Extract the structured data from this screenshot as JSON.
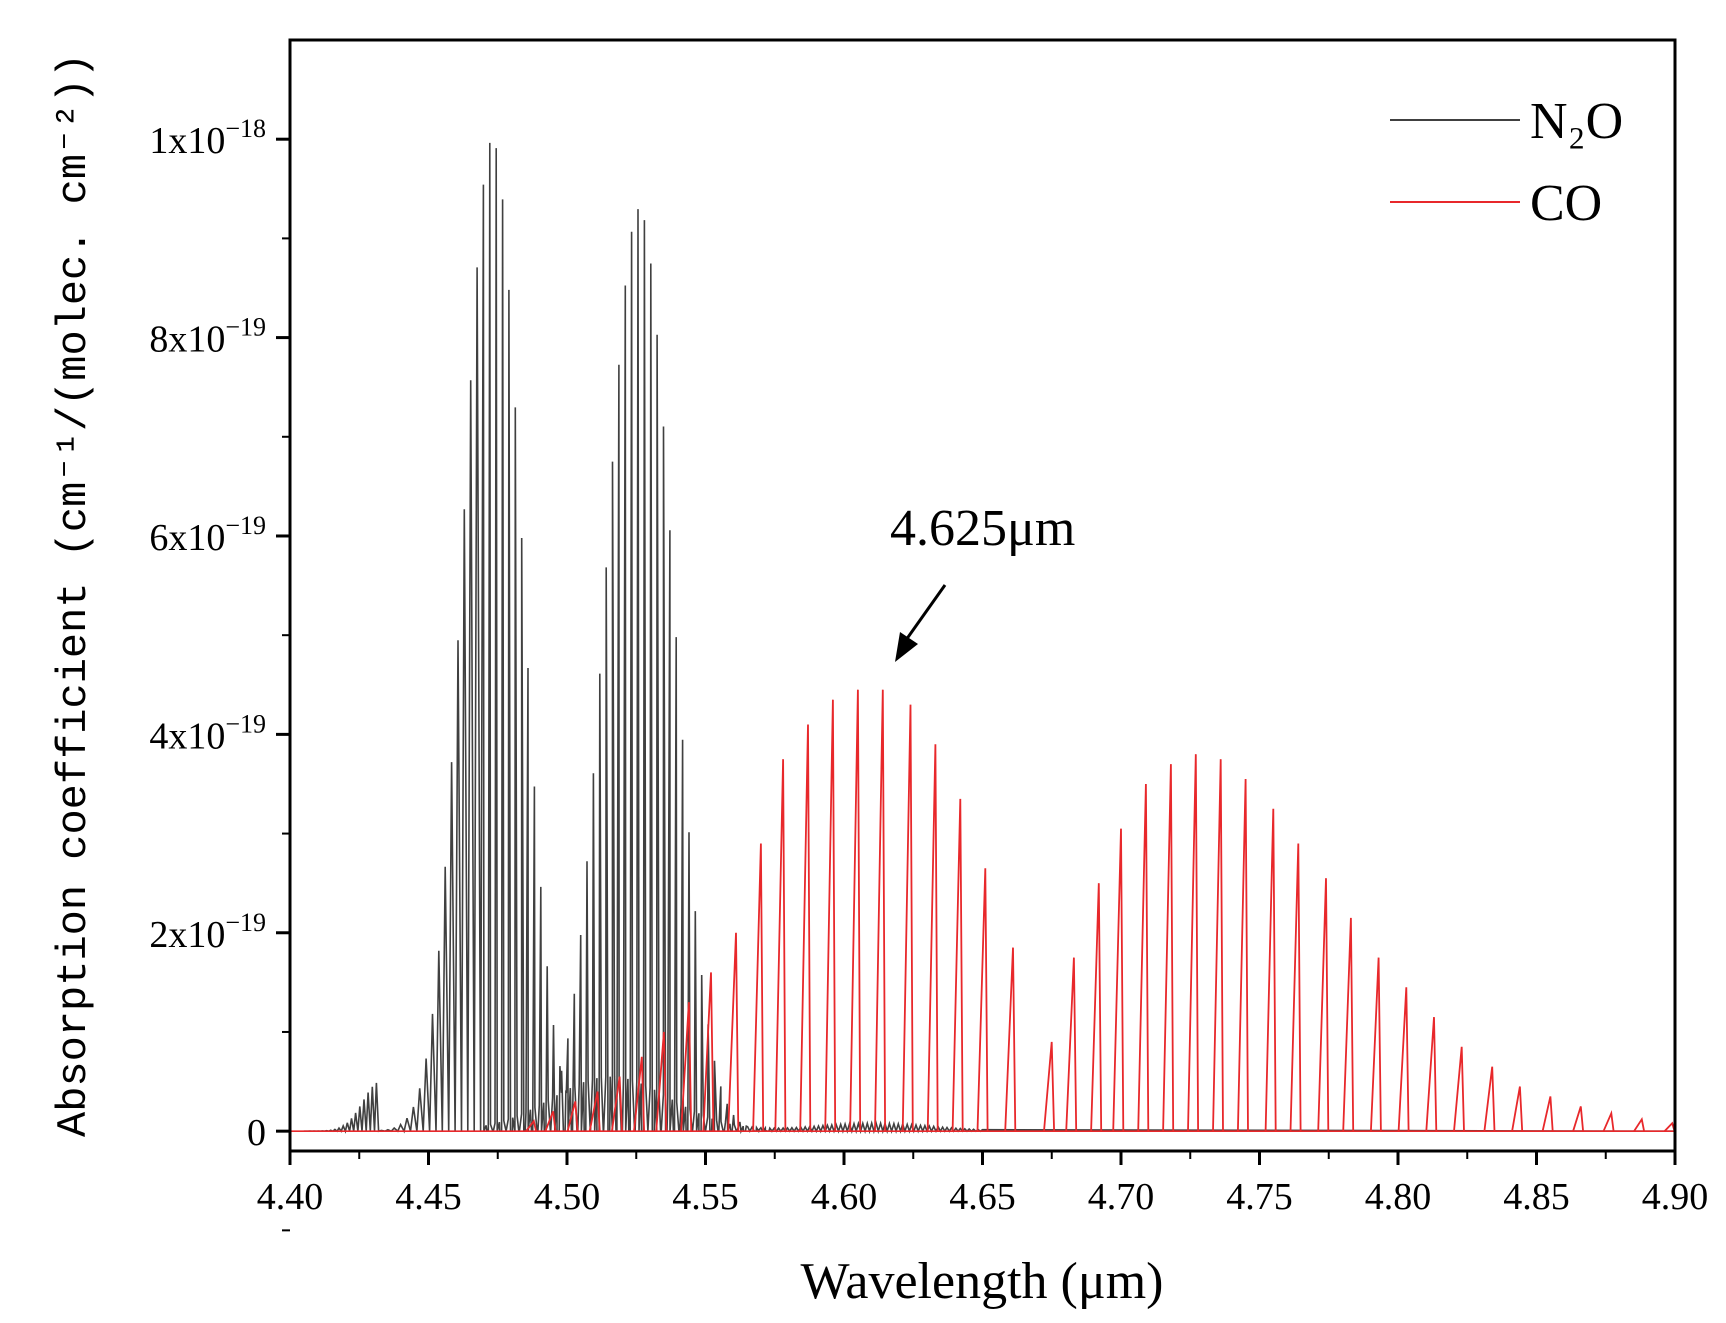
{
  "chart_data": {
    "type": "line",
    "title": "",
    "xlabel": "Wavelength (μm)",
    "ylabel": "Absorption coefficient (cm⁻¹/(molec. cm⁻²))",
    "xlim": [
      4.4,
      4.9
    ],
    "ylim": [
      -2e-20,
      1.1e-18
    ],
    "x_ticks": [
      4.4,
      4.45,
      4.5,
      4.55,
      4.6,
      4.65,
      4.7,
      4.75,
      4.8,
      4.85,
      4.9
    ],
    "x_tick_labels": [
      "4.40",
      "4.45",
      "4.50",
      "4.55",
      "4.60",
      "4.65",
      "4.70",
      "4.75",
      "4.80",
      "4.85",
      "4.90"
    ],
    "y_ticks": [
      0,
      2e-19,
      4e-19,
      6e-19,
      8e-19,
      1e-18
    ],
    "y_tick_labels": [
      {
        "base": "0",
        "exp": ""
      },
      {
        "base": "2x10",
        "exp": "−19"
      },
      {
        "base": "4x10",
        "exp": "−19"
      },
      {
        "base": "6x10",
        "exp": "−19"
      },
      {
        "base": "8x10",
        "exp": "−19"
      },
      {
        "base": "1x10",
        "exp": "−18"
      }
    ],
    "legend": {
      "position": "top-right",
      "entries": [
        {
          "name": "N₂O",
          "color": "#404040"
        },
        {
          "name": "CO",
          "color": "#e8282b"
        }
      ]
    },
    "annotations": [
      {
        "text": "4.625μm",
        "x": 4.617,
        "y": 4.3e-19
      }
    ],
    "series": [
      {
        "name": "N₂O",
        "color": "#404040",
        "description": "Dense rotational line comb, two lobes",
        "lobes": [
          {
            "center": 4.472,
            "peak": 1e-18,
            "start": 4.432,
            "end": 4.5
          },
          {
            "center": 4.525,
            "peak": 9.3e-19,
            "start": 4.497,
            "end": 4.575
          }
        ],
        "line_spacing": 0.0023,
        "weak_band": {
          "center": 4.515,
          "peak": 5.5e-20,
          "start": 4.47,
          "end": 4.6
        }
      },
      {
        "name": "CO",
        "color": "#e8282b",
        "description": "Discrete rotational lines, P and R branches",
        "x": [
          4.488,
          4.495,
          4.503,
          4.511,
          4.519,
          4.527,
          4.535,
          4.544,
          4.552,
          4.561,
          4.57,
          4.578,
          4.587,
          4.596,
          4.605,
          4.614,
          4.624,
          4.633,
          4.642,
          4.651,
          4.661,
          4.675,
          4.683,
          4.692,
          4.7,
          4.709,
          4.718,
          4.727,
          4.736,
          4.745,
          4.755,
          4.764,
          4.774,
          4.783,
          4.793,
          4.803,
          4.813,
          4.823,
          4.834,
          4.844,
          4.855,
          4.866,
          4.877,
          4.888,
          4.899
        ],
        "values": [
          1e-20,
          2e-20,
          3e-20,
          4e-20,
          5.5e-20,
          7.5e-20,
          1e-19,
          1.3e-19,
          1.6e-19,
          2e-19,
          2.9e-19,
          3.75e-19,
          4.1e-19,
          4.35e-19,
          4.45e-19,
          4.45e-19,
          4.3e-19,
          3.9e-19,
          3.35e-19,
          2.65e-19,
          1.85e-19,
          9e-20,
          1.75e-19,
          2.5e-19,
          3.05e-19,
          3.5e-19,
          3.7e-19,
          3.8e-19,
          3.75e-19,
          3.55e-19,
          3.25e-19,
          2.9e-19,
          2.55e-19,
          2.15e-19,
          1.75e-19,
          1.45e-19,
          1.15e-19,
          8.5e-20,
          6.5e-20,
          4.5e-20,
          3.5e-20,
          2.5e-20,
          1.8e-20,
          1.2e-20,
          8e-21
        ]
      }
    ]
  }
}
